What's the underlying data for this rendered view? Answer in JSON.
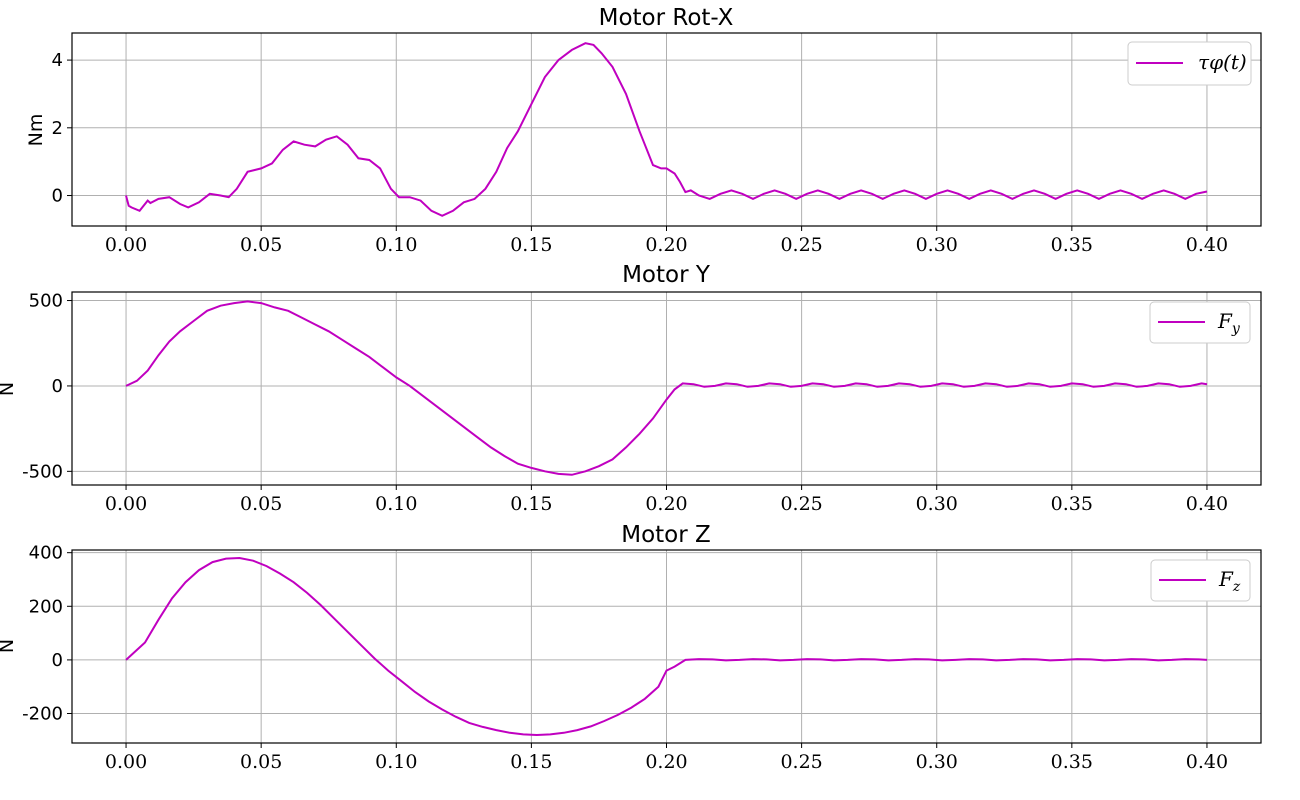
{
  "chart_data": [
    {
      "type": "line",
      "title": "Motor Rot-X",
      "xlabel": "",
      "ylabel": "Nm",
      "xlim": [
        -0.02,
        0.42
      ],
      "ylim": [
        -0.9,
        4.8
      ],
      "xticks": [
        0.0,
        0.05,
        0.1,
        0.15,
        0.2,
        0.25,
        0.3,
        0.35,
        0.4
      ],
      "xtick_labels": [
        "0.00",
        "0.05",
        "0.10",
        "0.15",
        "0.20",
        "0.25",
        "0.30",
        "0.35",
        "0.40"
      ],
      "yticks": [
        0,
        2,
        4
      ],
      "ytick_labels": [
        "0",
        "2",
        "4"
      ],
      "grid": true,
      "legend": "top-right",
      "series": [
        {
          "name": "τφ(t)",
          "color": "#c000c0",
          "x": [
            0.0,
            0.001,
            0.002,
            0.005,
            0.008,
            0.009,
            0.012,
            0.016,
            0.02,
            0.023,
            0.027,
            0.031,
            0.035,
            0.038,
            0.041,
            0.045,
            0.05,
            0.054,
            0.058,
            0.062,
            0.066,
            0.07,
            0.074,
            0.078,
            0.082,
            0.086,
            0.09,
            0.094,
            0.098,
            0.101,
            0.105,
            0.109,
            0.113,
            0.117,
            0.121,
            0.125,
            0.129,
            0.133,
            0.137,
            0.141,
            0.145,
            0.15,
            0.155,
            0.16,
            0.165,
            0.17,
            0.173,
            0.176,
            0.18,
            0.185,
            0.19,
            0.195,
            0.198,
            0.2,
            0.201,
            0.203,
            0.205,
            0.207,
            0.209,
            0.212,
            0.216,
            0.22,
            0.224,
            0.228,
            0.232,
            0.236,
            0.24,
            0.244,
            0.248,
            0.252,
            0.256,
            0.26,
            0.264,
            0.268,
            0.272,
            0.276,
            0.28,
            0.284,
            0.288,
            0.292,
            0.296,
            0.3,
            0.304,
            0.308,
            0.312,
            0.316,
            0.32,
            0.324,
            0.328,
            0.332,
            0.336,
            0.34,
            0.344,
            0.348,
            0.352,
            0.356,
            0.36,
            0.364,
            0.368,
            0.372,
            0.376,
            0.38,
            0.384,
            0.388,
            0.392,
            0.396,
            0.4
          ],
          "y": [
            0.0,
            -0.3,
            -0.35,
            -0.45,
            -0.15,
            -0.22,
            -0.1,
            -0.05,
            -0.25,
            -0.35,
            -0.2,
            0.05,
            0.0,
            -0.05,
            0.2,
            0.7,
            0.8,
            0.95,
            1.35,
            1.6,
            1.5,
            1.45,
            1.65,
            1.75,
            1.5,
            1.1,
            1.05,
            0.8,
            0.2,
            -0.05,
            -0.05,
            -0.15,
            -0.45,
            -0.6,
            -0.45,
            -0.2,
            -0.1,
            0.2,
            0.7,
            1.4,
            1.9,
            2.7,
            3.5,
            4.0,
            4.3,
            4.5,
            4.45,
            4.2,
            3.8,
            3.0,
            1.9,
            0.9,
            0.8,
            0.8,
            0.75,
            0.65,
            0.4,
            0.1,
            0.15,
            0.0,
            -0.1,
            0.05,
            0.15,
            0.05,
            -0.1,
            0.05,
            0.15,
            0.05,
            -0.1,
            0.05,
            0.15,
            0.05,
            -0.1,
            0.05,
            0.15,
            0.05,
            -0.1,
            0.05,
            0.15,
            0.05,
            -0.1,
            0.05,
            0.15,
            0.05,
            -0.1,
            0.05,
            0.15,
            0.05,
            -0.1,
            0.05,
            0.15,
            0.05,
            -0.1,
            0.05,
            0.15,
            0.05,
            -0.1,
            0.05,
            0.15,
            0.05,
            -0.1,
            0.05,
            0.15,
            0.05,
            -0.1,
            0.05,
            0.12
          ]
        }
      ]
    },
    {
      "type": "line",
      "title": "Motor Y",
      "xlabel": "",
      "ylabel": "N",
      "xlim": [
        -0.02,
        0.42
      ],
      "ylim": [
        -580,
        550
      ],
      "xticks": [
        0.0,
        0.05,
        0.1,
        0.15,
        0.2,
        0.25,
        0.3,
        0.35,
        0.4
      ],
      "xtick_labels": [
        "0.00",
        "0.05",
        "0.10",
        "0.15",
        "0.20",
        "0.25",
        "0.30",
        "0.35",
        "0.40"
      ],
      "yticks": [
        -500,
        0,
        500
      ],
      "ytick_labels": [
        "-500",
        "0",
        "500"
      ],
      "grid": true,
      "legend": "top-right",
      "series": [
        {
          "name": "Fy",
          "color": "#c000c0",
          "x": [
            0.0,
            0.004,
            0.008,
            0.012,
            0.016,
            0.02,
            0.025,
            0.03,
            0.035,
            0.04,
            0.045,
            0.05,
            0.055,
            0.06,
            0.065,
            0.07,
            0.075,
            0.08,
            0.085,
            0.09,
            0.095,
            0.1,
            0.105,
            0.11,
            0.115,
            0.12,
            0.125,
            0.13,
            0.135,
            0.14,
            0.145,
            0.15,
            0.155,
            0.16,
            0.165,
            0.17,
            0.175,
            0.18,
            0.185,
            0.19,
            0.195,
            0.2,
            0.203,
            0.206,
            0.21,
            0.214,
            0.218,
            0.222,
            0.226,
            0.23,
            0.234,
            0.238,
            0.242,
            0.246,
            0.25,
            0.254,
            0.258,
            0.262,
            0.266,
            0.27,
            0.274,
            0.278,
            0.282,
            0.286,
            0.29,
            0.294,
            0.298,
            0.302,
            0.306,
            0.31,
            0.314,
            0.318,
            0.322,
            0.326,
            0.33,
            0.334,
            0.338,
            0.342,
            0.346,
            0.35,
            0.354,
            0.358,
            0.362,
            0.366,
            0.37,
            0.374,
            0.378,
            0.382,
            0.386,
            0.39,
            0.394,
            0.398,
            0.4
          ],
          "y": [
            0,
            30,
            90,
            180,
            260,
            320,
            380,
            440,
            470,
            485,
            495,
            485,
            460,
            440,
            400,
            360,
            320,
            270,
            220,
            170,
            110,
            50,
            0,
            -60,
            -120,
            -180,
            -240,
            -300,
            -360,
            -410,
            -455,
            -480,
            -500,
            -515,
            -520,
            -500,
            -470,
            -430,
            -360,
            -280,
            -190,
            -80,
            -20,
            15,
            10,
            -5,
            0,
            15,
            10,
            -5,
            0,
            15,
            10,
            -5,
            0,
            15,
            10,
            -5,
            0,
            15,
            10,
            -5,
            0,
            15,
            10,
            -5,
            0,
            15,
            10,
            -5,
            0,
            15,
            10,
            -5,
            0,
            15,
            10,
            -5,
            0,
            15,
            10,
            -5,
            0,
            15,
            10,
            -5,
            0,
            15,
            10,
            -5,
            0,
            15,
            10
          ]
        }
      ]
    },
    {
      "type": "line",
      "title": "Motor Z",
      "xlabel": "",
      "ylabel": "N",
      "xlim": [
        -0.02,
        0.42
      ],
      "ylim": [
        -310,
        410
      ],
      "xticks": [
        0.0,
        0.05,
        0.1,
        0.15,
        0.2,
        0.25,
        0.3,
        0.35,
        0.4
      ],
      "xtick_labels": [
        "0.00",
        "0.05",
        "0.10",
        "0.15",
        "0.20",
        "0.25",
        "0.30",
        "0.35",
        "0.40"
      ],
      "yticks": [
        -200,
        0,
        200,
        400
      ],
      "ytick_labels": [
        "-200",
        "0",
        "200",
        "400"
      ],
      "grid": true,
      "legend": "top-right",
      "series": [
        {
          "name": "Fz",
          "color": "#c000c0",
          "x": [
            0.0,
            0.007,
            0.012,
            0.017,
            0.022,
            0.027,
            0.032,
            0.037,
            0.042,
            0.047,
            0.052,
            0.057,
            0.062,
            0.067,
            0.072,
            0.077,
            0.082,
            0.087,
            0.092,
            0.097,
            0.102,
            0.107,
            0.112,
            0.117,
            0.122,
            0.127,
            0.132,
            0.137,
            0.142,
            0.147,
            0.152,
            0.157,
            0.162,
            0.167,
            0.172,
            0.177,
            0.182,
            0.187,
            0.192,
            0.197,
            0.2,
            0.203,
            0.207,
            0.212,
            0.217,
            0.222,
            0.227,
            0.232,
            0.237,
            0.242,
            0.247,
            0.252,
            0.257,
            0.262,
            0.267,
            0.272,
            0.277,
            0.282,
            0.287,
            0.292,
            0.297,
            0.302,
            0.307,
            0.312,
            0.317,
            0.322,
            0.327,
            0.332,
            0.337,
            0.342,
            0.347,
            0.352,
            0.357,
            0.362,
            0.367,
            0.372,
            0.377,
            0.382,
            0.387,
            0.392,
            0.397,
            0.4
          ],
          "y": [
            0,
            65,
            150,
            230,
            290,
            335,
            365,
            378,
            380,
            370,
            350,
            322,
            290,
            250,
            205,
            155,
            105,
            55,
            5,
            -40,
            -80,
            -120,
            -155,
            -185,
            -212,
            -235,
            -250,
            -262,
            -272,
            -278,
            -280,
            -278,
            -272,
            -262,
            -248,
            -228,
            -205,
            -178,
            -145,
            -100,
            -40,
            -25,
            0,
            3,
            2,
            -2,
            0,
            3,
            2,
            -2,
            0,
            3,
            2,
            -2,
            0,
            3,
            2,
            -2,
            0,
            3,
            2,
            -2,
            0,
            3,
            2,
            -2,
            0,
            3,
            2,
            -2,
            0,
            3,
            2,
            -2,
            0,
            3,
            2,
            -2,
            0,
            3,
            2,
            0
          ]
        }
      ]
    }
  ]
}
